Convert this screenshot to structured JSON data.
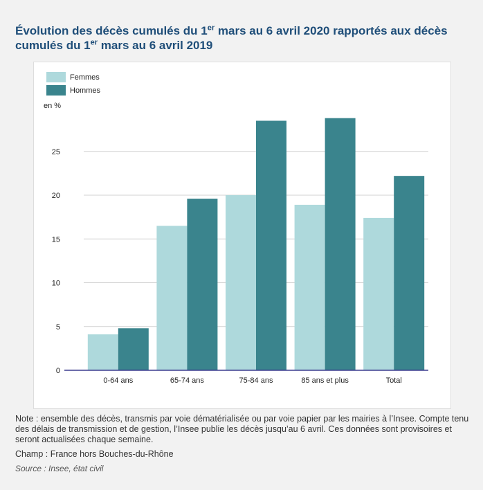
{
  "header": {
    "title_part1": "Évolution des décès cumulés du 1",
    "title_sup1": "er",
    "title_part2": " mars au 6 avril 2020 rapportés aux décès cumulés du 1",
    "title_sup2": "er",
    "title_part3": " mars au 6 avril 2019"
  },
  "chart_data": {
    "type": "bar",
    "categories": [
      "0-64 ans",
      "65-74 ans",
      "75-84 ans",
      "85 ans et plus",
      "Total"
    ],
    "series": [
      {
        "name": "Femmes",
        "color": "#aed9dc",
        "values": [
          4.1,
          16.5,
          20.0,
          18.9,
          17.4
        ]
      },
      {
        "name": "Hommes",
        "color": "#3a848d",
        "values": [
          4.8,
          19.6,
          28.5,
          28.8,
          22.2
        ]
      }
    ],
    "ylabel": "en %",
    "ylim": [
      0,
      30
    ],
    "yticks": [
      0,
      5,
      10,
      15,
      20,
      25
    ],
    "grid": true,
    "legend_position": "top-left"
  },
  "notes": {
    "note": "Note : ensemble des décès, transmis par voie dématérialisée ou par voie papier par les mairies à l’Insee. Compte tenu des délais de transmission et de gestion, l’Insee publie les décès jusqu’au 6 avril. Ces données sont provisoires et seront actualisées chaque semaine.",
    "champ": "Champ : France hors Bouches-du-Rhône",
    "source": "Source : Insee, état civil"
  }
}
